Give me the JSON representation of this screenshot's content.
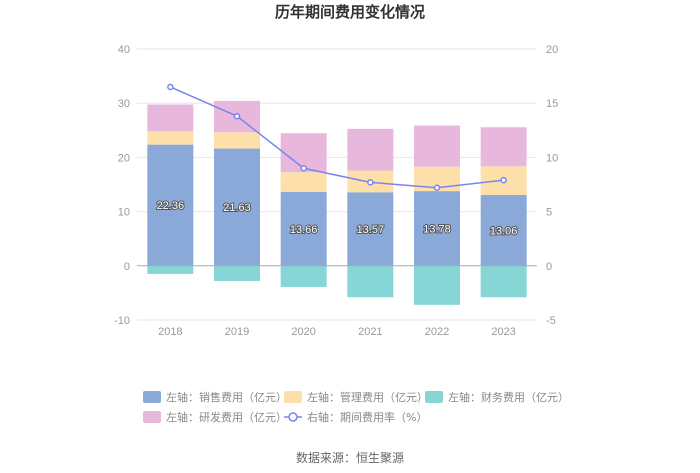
{
  "chart_data": {
    "type": "bar",
    "title": "历年期间费用变化情况",
    "categories": [
      "2018",
      "2019",
      "2020",
      "2021",
      "2022",
      "2023"
    ],
    "left_axis": {
      "ylim": [
        -10,
        40
      ],
      "ticks": [
        "40",
        "30",
        "20",
        "10",
        "0",
        "-10"
      ]
    },
    "right_axis": {
      "ylim": [
        -5,
        20
      ],
      "ticks": [
        "20",
        "15",
        "10",
        "5",
        "0",
        "-5"
      ]
    },
    "series": [
      {
        "name": "左轴：销售费用（亿元）",
        "key": "sales",
        "axis": "left",
        "type": "bar",
        "color": "#8aa9d8",
        "values": [
          22.36,
          21.63,
          13.66,
          13.57,
          13.78,
          13.06
        ],
        "labels": [
          "22.36",
          "21.63",
          "13.66",
          "13.57",
          "13.78",
          "13.06"
        ]
      },
      {
        "name": "左轴：管理费用（亿元）",
        "key": "admin",
        "axis": "left",
        "type": "bar",
        "color": "#fde0a9",
        "values": [
          2.5,
          3.0,
          3.6,
          4.0,
          4.5,
          5.3
        ]
      },
      {
        "name": "左轴：财务费用（亿元）",
        "key": "finance",
        "axis": "left",
        "type": "bar",
        "color": "#86d6d6",
        "values": [
          -1.5,
          -2.8,
          -3.9,
          -5.8,
          -7.2,
          -5.8
        ]
      },
      {
        "name": "左轴：研发费用（亿元）",
        "key": "rnd",
        "axis": "left",
        "type": "bar",
        "color": "#e8b8dc",
        "values": [
          4.9,
          5.8,
          7.2,
          7.7,
          7.6,
          7.2
        ]
      },
      {
        "name": "右轴：期间费用率（%）",
        "key": "rate",
        "axis": "right",
        "type": "line",
        "color": "#7b84ee",
        "values": [
          16.5,
          13.8,
          9.0,
          7.7,
          7.2,
          7.9
        ]
      }
    ],
    "grid": true,
    "legend_position": "bottom"
  },
  "source": "数据来源：恒生聚源"
}
